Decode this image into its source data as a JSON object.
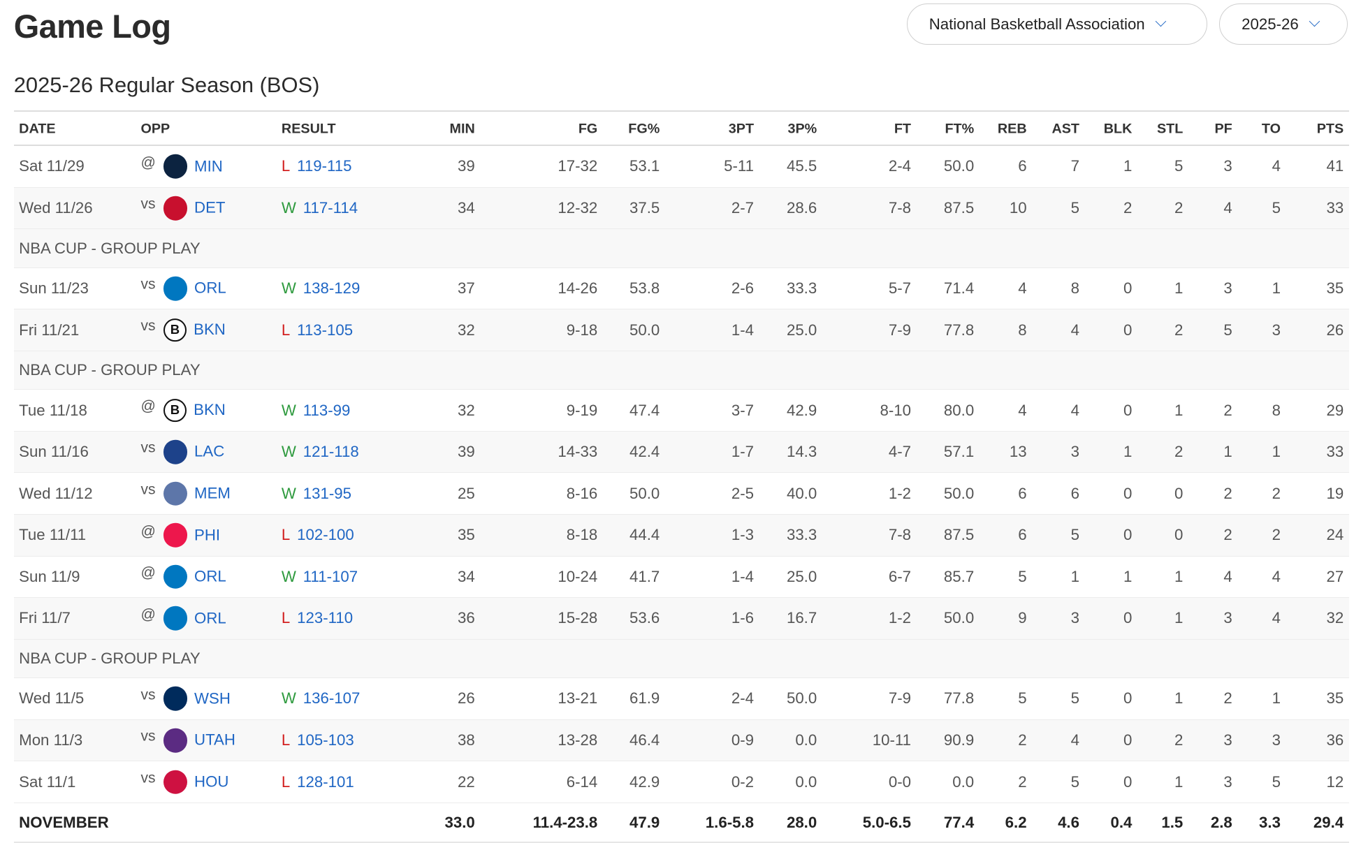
{
  "header": {
    "title": "Game Log",
    "league_select": "National Basketball Association",
    "season_select": "2025-26"
  },
  "section_title": "2025-26 Regular Season (BOS)",
  "columns": [
    "DATE",
    "OPP",
    "RESULT",
    "MIN",
    "FG",
    "FG%",
    "3PT",
    "3P%",
    "FT",
    "FT%",
    "REB",
    "AST",
    "BLK",
    "STL",
    "PF",
    "TO",
    "PTS"
  ],
  "rows": [
    {
      "date": "Sat 11/29",
      "ha": "@",
      "team": "MIN",
      "logo_color": "#0c2340",
      "wl": "L",
      "score": "119-115",
      "stats": [
        "39",
        "17-32",
        "53.1",
        "5-11",
        "45.5",
        "2-4",
        "50.0",
        "6",
        "7",
        "1",
        "5",
        "3",
        "4",
        "41"
      ]
    },
    {
      "date": "Wed 11/26",
      "ha": "vs",
      "team": "DET",
      "logo_color": "#c8102e",
      "wl": "W",
      "score": "117-114",
      "stats": [
        "34",
        "12-32",
        "37.5",
        "2-7",
        "28.6",
        "7-8",
        "87.5",
        "10",
        "5",
        "2",
        "2",
        "4",
        "5",
        "33"
      ]
    },
    {
      "group": "NBA CUP - GROUP PLAY"
    },
    {
      "date": "Sun 11/23",
      "ha": "vs",
      "team": "ORL",
      "logo_color": "#0077c0",
      "wl": "W",
      "score": "138-129",
      "stats": [
        "37",
        "14-26",
        "53.8",
        "2-6",
        "33.3",
        "5-7",
        "71.4",
        "4",
        "8",
        "0",
        "1",
        "3",
        "1",
        "35"
      ]
    },
    {
      "date": "Fri 11/21",
      "ha": "vs",
      "team": "BKN",
      "logo_color": "#111111",
      "wl": "L",
      "score": "113-105",
      "stats": [
        "32",
        "9-18",
        "50.0",
        "1-4",
        "25.0",
        "7-9",
        "77.8",
        "8",
        "4",
        "0",
        "2",
        "5",
        "3",
        "26"
      ]
    },
    {
      "group": "NBA CUP - GROUP PLAY"
    },
    {
      "date": "Tue 11/18",
      "ha": "@",
      "team": "BKN",
      "logo_color": "#111111",
      "wl": "W",
      "score": "113-99",
      "stats": [
        "32",
        "9-19",
        "47.4",
        "3-7",
        "42.9",
        "8-10",
        "80.0",
        "4",
        "4",
        "0",
        "1",
        "2",
        "8",
        "29"
      ]
    },
    {
      "date": "Sun 11/16",
      "ha": "vs",
      "team": "LAC",
      "logo_color": "#1d428a",
      "wl": "W",
      "score": "121-118",
      "stats": [
        "39",
        "14-33",
        "42.4",
        "1-7",
        "14.3",
        "4-7",
        "57.1",
        "13",
        "3",
        "1",
        "2",
        "1",
        "1",
        "33"
      ]
    },
    {
      "date": "Wed 11/12",
      "ha": "vs",
      "team": "MEM",
      "logo_color": "#5d76a9",
      "wl": "W",
      "score": "131-95",
      "stats": [
        "25",
        "8-16",
        "50.0",
        "2-5",
        "40.0",
        "1-2",
        "50.0",
        "6",
        "6",
        "0",
        "0",
        "2",
        "2",
        "19"
      ]
    },
    {
      "date": "Tue 11/11",
      "ha": "@",
      "team": "PHI",
      "logo_color": "#ed174c",
      "wl": "L",
      "score": "102-100",
      "stats": [
        "35",
        "8-18",
        "44.4",
        "1-3",
        "33.3",
        "7-8",
        "87.5",
        "6",
        "5",
        "0",
        "0",
        "2",
        "2",
        "24"
      ]
    },
    {
      "date": "Sun 11/9",
      "ha": "@",
      "team": "ORL",
      "logo_color": "#0077c0",
      "wl": "W",
      "score": "111-107",
      "stats": [
        "34",
        "10-24",
        "41.7",
        "1-4",
        "25.0",
        "6-7",
        "85.7",
        "5",
        "1",
        "1",
        "1",
        "4",
        "4",
        "27"
      ]
    },
    {
      "date": "Fri 11/7",
      "ha": "@",
      "team": "ORL",
      "logo_color": "#0077c0",
      "wl": "L",
      "score": "123-110",
      "stats": [
        "36",
        "15-28",
        "53.6",
        "1-6",
        "16.7",
        "1-2",
        "50.0",
        "9",
        "3",
        "0",
        "1",
        "3",
        "4",
        "32"
      ]
    },
    {
      "group": "NBA CUP - GROUP PLAY"
    },
    {
      "date": "Wed 11/5",
      "ha": "vs",
      "team": "WSH",
      "logo_color": "#002b5c",
      "wl": "W",
      "score": "136-107",
      "stats": [
        "26",
        "13-21",
        "61.9",
        "2-4",
        "50.0",
        "7-9",
        "77.8",
        "5",
        "5",
        "0",
        "1",
        "2",
        "1",
        "35"
      ]
    },
    {
      "date": "Mon 11/3",
      "ha": "vs",
      "team": "UTAH",
      "logo_color": "#5b2b82",
      "wl": "L",
      "score": "105-103",
      "stats": [
        "38",
        "13-28",
        "46.4",
        "0-9",
        "0.0",
        "10-11",
        "90.9",
        "2",
        "4",
        "0",
        "2",
        "3",
        "3",
        "36"
      ]
    },
    {
      "date": "Sat 11/1",
      "ha": "vs",
      "team": "HOU",
      "logo_color": "#ce1141",
      "wl": "L",
      "score": "128-101",
      "stats": [
        "22",
        "6-14",
        "42.9",
        "0-2",
        "0.0",
        "0-0",
        "0.0",
        "2",
        "5",
        "0",
        "1",
        "3",
        "5",
        "12"
      ]
    }
  ],
  "total": {
    "label": "NOVEMBER",
    "stats": [
      "33.0",
      "11.4-23.8",
      "47.9",
      "1.6-5.8",
      "28.0",
      "5.0-6.5",
      "77.4",
      "6.2",
      "4.6",
      "0.4",
      "1.5",
      "2.8",
      "3.3",
      "29.4"
    ]
  }
}
